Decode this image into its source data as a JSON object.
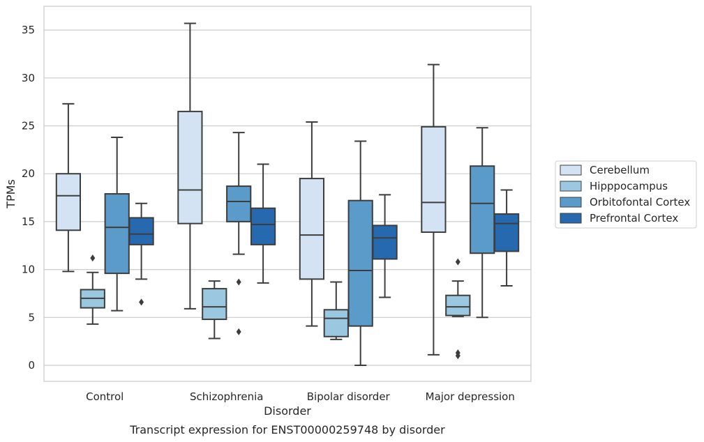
{
  "chart_data": {
    "type": "box",
    "caption": "Transcript expression for ENST00000259748 by disorder",
    "xlabel": "Disorder",
    "ylabel": "TPMs",
    "ylim": [
      -1.7,
      37.3
    ],
    "yticks": [
      0,
      5,
      10,
      15,
      20,
      25,
      30,
      35
    ],
    "grid": "horizontal",
    "legend_position": "right",
    "categories": [
      "Control",
      "Schizophrenia",
      "Bipolar disorder",
      "Major depression"
    ],
    "series": [
      {
        "name": "Cerebellum",
        "color": "#d3e3f3",
        "boxes": [
          {
            "whisker_low": 9.8,
            "q1": 14.1,
            "median": 17.7,
            "q3": 20.0,
            "whisker_high": 27.3,
            "outliers": []
          },
          {
            "whisker_low": 5.9,
            "q1": 14.8,
            "median": 18.3,
            "q3": 26.5,
            "whisker_high": 35.7,
            "outliers": []
          },
          {
            "whisker_low": 4.1,
            "q1": 9.0,
            "median": 13.6,
            "q3": 19.5,
            "whisker_high": 25.4,
            "outliers": []
          },
          {
            "whisker_low": 1.1,
            "q1": 13.9,
            "median": 17.0,
            "q3": 24.9,
            "whisker_high": 31.4,
            "outliers": []
          }
        ]
      },
      {
        "name": "Hipppocampus",
        "color": "#9ac8e0",
        "boxes": [
          {
            "whisker_low": 4.3,
            "q1": 6.0,
            "median": 7.0,
            "q3": 7.9,
            "whisker_high": 9.7,
            "outliers": [
              11.2
            ]
          },
          {
            "whisker_low": 2.8,
            "q1": 4.8,
            "median": 6.1,
            "q3": 8.0,
            "whisker_high": 8.8,
            "outliers": []
          },
          {
            "whisker_low": 2.7,
            "q1": 3.0,
            "median": 4.9,
            "q3": 5.8,
            "whisker_high": 8.7,
            "outliers": []
          },
          {
            "whisker_low": 5.1,
            "q1": 5.2,
            "median": 6.1,
            "q3": 7.3,
            "whisker_high": 8.8,
            "outliers": [
              10.8,
              1.3,
              1.0
            ]
          }
        ]
      },
      {
        "name": "Orbitofontal Cortex",
        "color": "#5a9bc9",
        "boxes": [
          {
            "whisker_low": 5.7,
            "q1": 9.6,
            "median": 14.4,
            "q3": 17.9,
            "whisker_high": 23.8,
            "outliers": []
          },
          {
            "whisker_low": 11.6,
            "q1": 15.0,
            "median": 17.1,
            "q3": 18.7,
            "whisker_high": 24.3,
            "outliers": [
              8.7,
              3.5
            ]
          },
          {
            "whisker_low": 0.0,
            "q1": 4.1,
            "median": 9.9,
            "q3": 17.2,
            "whisker_high": 23.4,
            "outliers": []
          },
          {
            "whisker_low": 5.0,
            "q1": 11.7,
            "median": 16.9,
            "q3": 20.8,
            "whisker_high": 24.8,
            "outliers": []
          }
        ]
      },
      {
        "name": "Prefrontal Cortex",
        "color": "#2669ae",
        "boxes": [
          {
            "whisker_low": 9.0,
            "q1": 12.6,
            "median": 13.7,
            "q3": 15.4,
            "whisker_high": 16.9,
            "outliers": [
              6.6
            ]
          },
          {
            "whisker_low": 8.6,
            "q1": 12.6,
            "median": 14.7,
            "q3": 16.4,
            "whisker_high": 21.0,
            "outliers": []
          },
          {
            "whisker_low": 7.1,
            "q1": 11.1,
            "median": 13.3,
            "q3": 14.6,
            "whisker_high": 17.8,
            "outliers": []
          },
          {
            "whisker_low": 8.3,
            "q1": 11.9,
            "median": 14.8,
            "q3": 15.8,
            "whisker_high": 18.3,
            "outliers": []
          }
        ]
      }
    ]
  }
}
